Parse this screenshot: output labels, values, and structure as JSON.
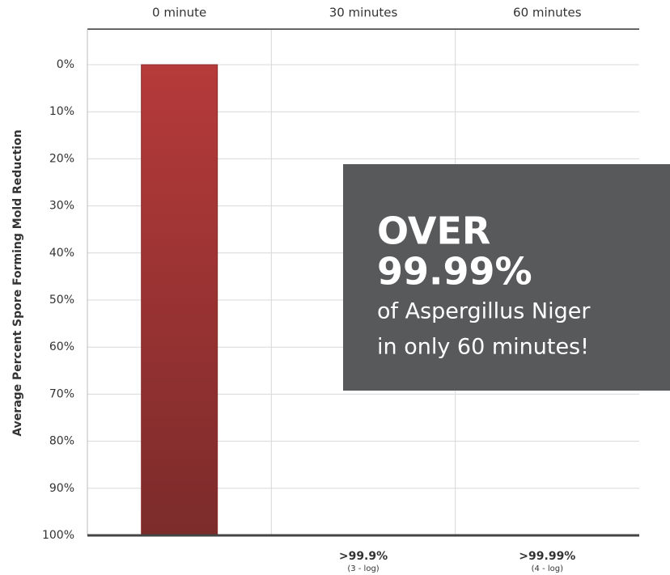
{
  "chart_data": {
    "type": "bar",
    "y_label": "Average Percent Spore Forming Mold Reduction",
    "categories": [
      "0 minute",
      "30 minutes",
      "60 minutes"
    ],
    "values": [
      0,
      99.9,
      99.99
    ],
    "value_labels": [
      null,
      ">99.9%",
      ">99.99%"
    ],
    "value_notes": [
      null,
      "(3 - log)",
      "(4 - log)"
    ],
    "colors": [
      "#a83434",
      "#3a8ee0",
      "#3a8ee0"
    ],
    "ylim": [
      0,
      100
    ],
    "y_inverted": true,
    "grid": true,
    "yticks": [
      {
        "value": 0,
        "label": "0%"
      },
      {
        "value": 10,
        "label": "10%"
      },
      {
        "value": 20,
        "label": "20%"
      },
      {
        "value": 30,
        "label": "30%"
      },
      {
        "value": 40,
        "label": "40%"
      },
      {
        "value": 50,
        "label": "50%"
      },
      {
        "value": 60,
        "label": "60%"
      },
      {
        "value": 70,
        "label": "70%"
      },
      {
        "value": 80,
        "label": "80%"
      },
      {
        "value": 90,
        "label": "90%"
      },
      {
        "value": 100,
        "label": "100%"
      }
    ],
    "annotation": {
      "headline": [
        "OVER",
        "99.99%"
      ],
      "text": [
        "of Aspergillus Niger",
        "in only 60 minutes!"
      ]
    }
  }
}
